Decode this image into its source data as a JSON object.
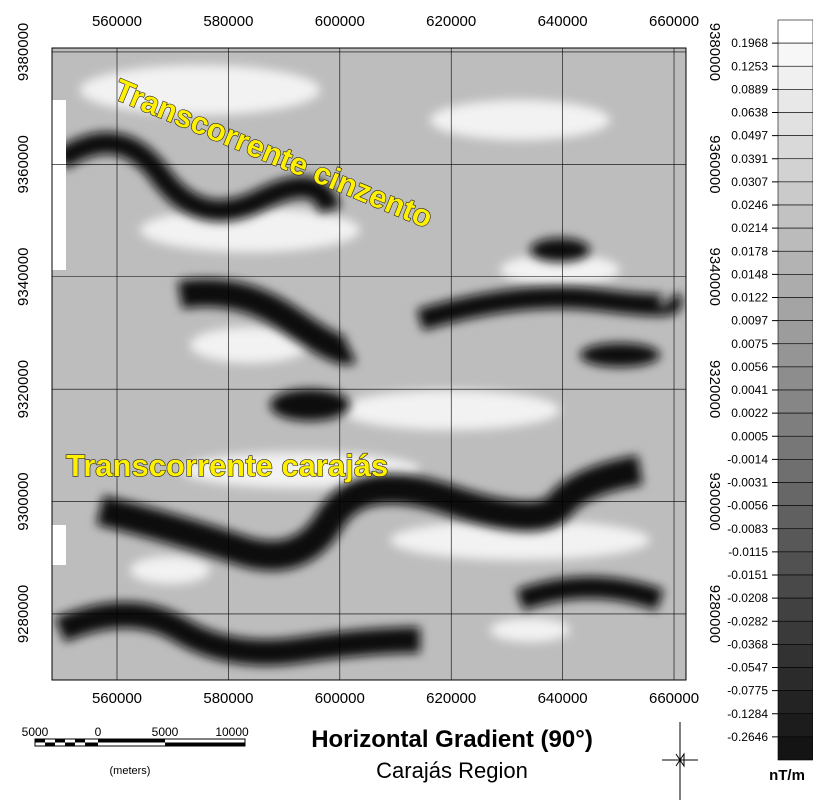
{
  "map": {
    "xlim": [
      548330,
      662150
    ],
    "ylim": [
      9268250,
      9380700
    ],
    "xticks": [
      560000,
      580000,
      600000,
      620000,
      640000,
      660000
    ],
    "yticks": [
      9280000,
      9300000,
      9320000,
      9340000,
      9360000,
      9380000
    ],
    "annotations": [
      "Transcorrente cinzento",
      "Transcorrente carajás"
    ]
  },
  "legend": {
    "labels": [
      "0.1968",
      "0.1253",
      "0.0889",
      "0.0638",
      "0.0497",
      "0.0391",
      "0.0307",
      "0.0246",
      "0.0214",
      "0.0178",
      "0.0148",
      "0.0122",
      "0.0097",
      "0.0075",
      "0.0056",
      "0.0041",
      "0.0022",
      "0.0005",
      "-0.0014",
      "-0.0031",
      "-0.0056",
      "-0.0083",
      "-0.0115",
      "-0.0151",
      "-0.0208",
      "-0.0282",
      "-0.0368",
      "-0.0547",
      "-0.0775",
      "-0.1284",
      "-0.2646"
    ],
    "unit": "nT/m"
  },
  "title": "Horizontal Gradient (90°)",
  "subtitle": "Carajás Region",
  "scale_bar": {
    "labels": [
      "5000",
      "0",
      "5000",
      "10000"
    ],
    "unit": "(meters)"
  }
}
